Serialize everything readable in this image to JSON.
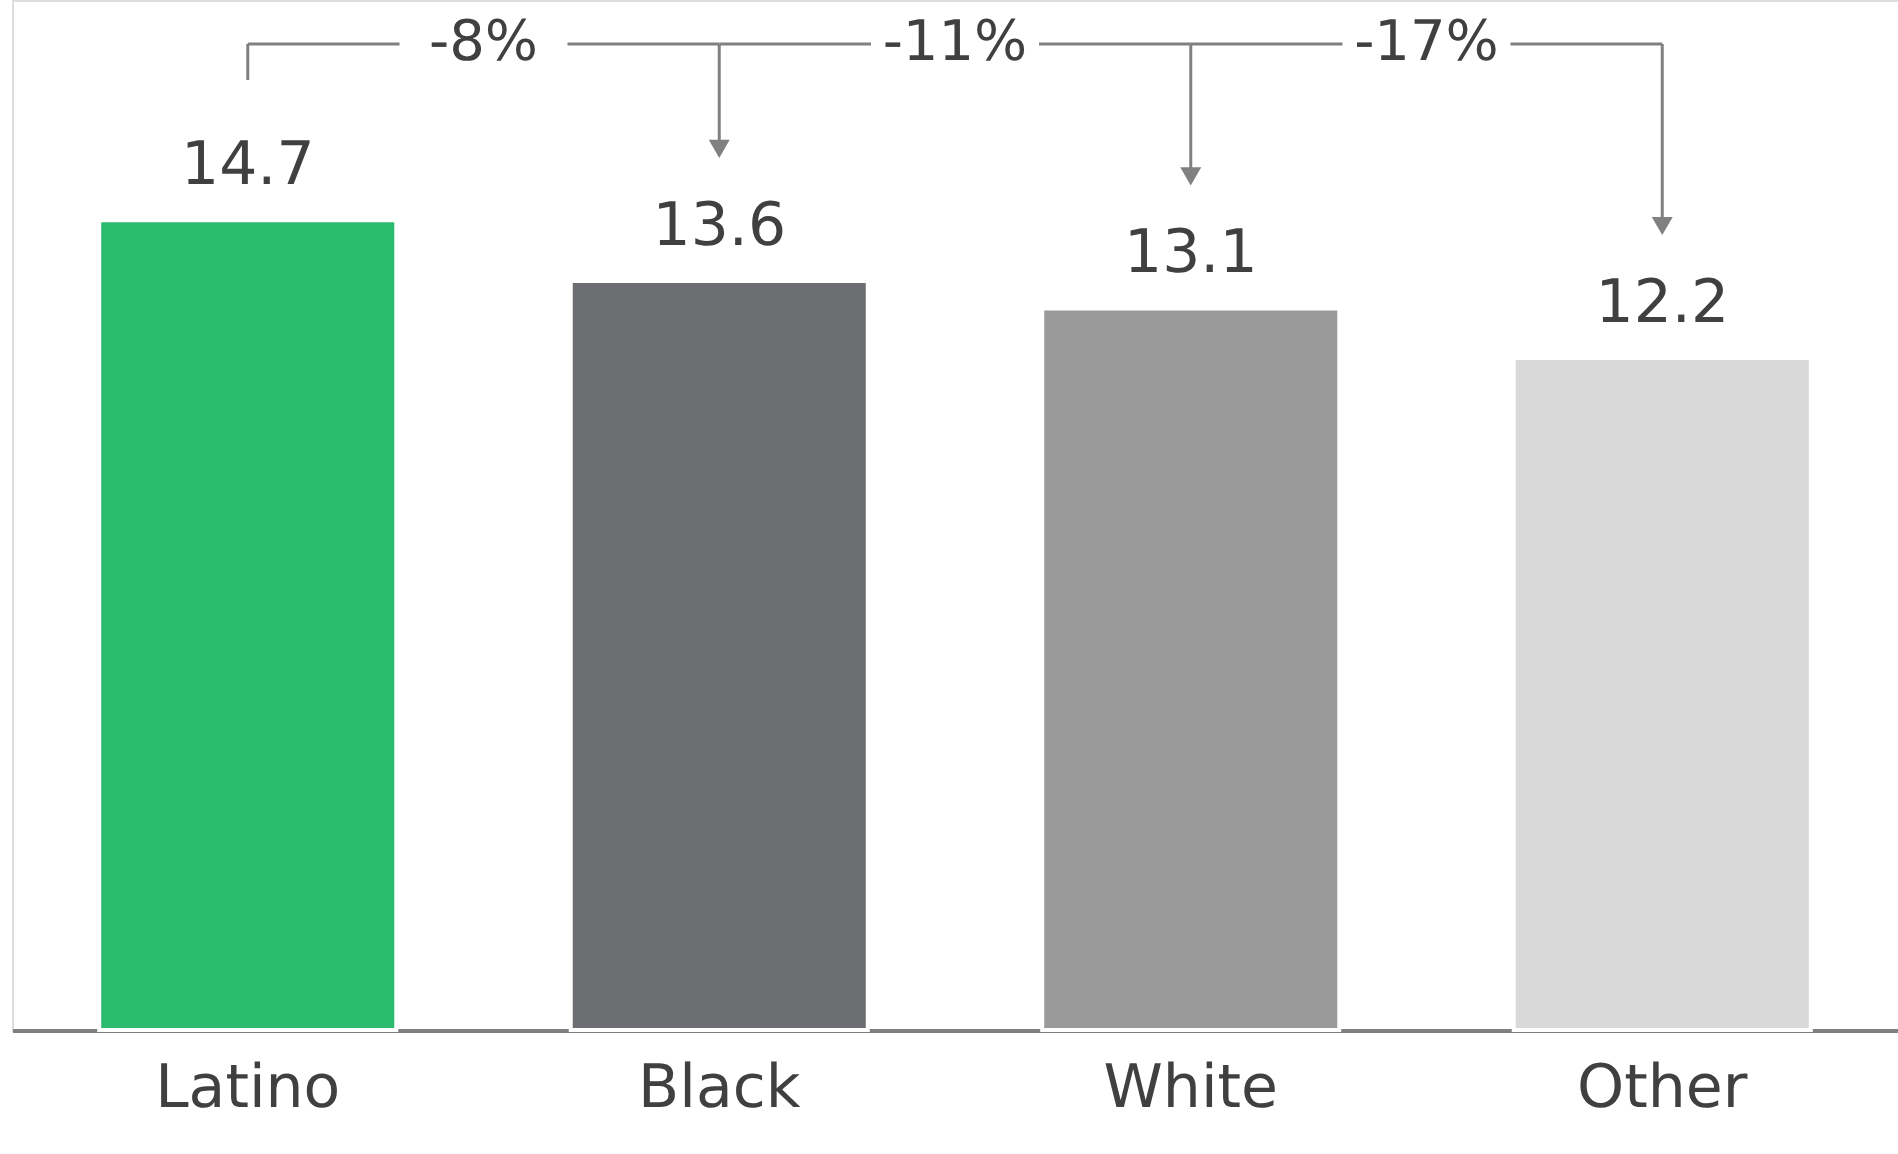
{
  "chart_data": {
    "type": "bar",
    "categories": [
      "Latino",
      "Black",
      "White",
      "Other"
    ],
    "values": [
      14.7,
      13.6,
      13.1,
      12.2
    ],
    "colors": [
      "#2bbb6f",
      "#6d6e71",
      "#999999",
      "#d9d9d9"
    ],
    "ylim": [
      0,
      18.7
    ],
    "data_labels": true,
    "grid": false,
    "annotations": [
      "-8%",
      "-11%",
      "-17%"
    ]
  }
}
